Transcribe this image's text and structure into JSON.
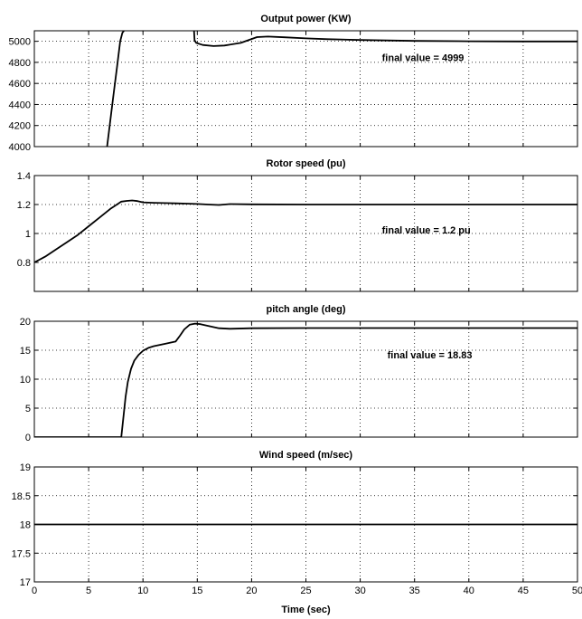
{
  "chart_data": [
    {
      "type": "line",
      "title": "Output power (KW)",
      "xlim": [
        0,
        50
      ],
      "ylim": [
        4000,
        5100
      ],
      "yticks": [
        4000,
        4200,
        4400,
        4600,
        4800,
        5000
      ],
      "xticks": [
        0,
        5,
        10,
        15,
        20,
        25,
        30,
        35,
        40,
        45,
        50
      ],
      "show_xtick_labels": false,
      "grid": true,
      "annotation": "final value =  4999",
      "annotation_at": [
        32,
        4810
      ],
      "series": [
        {
          "x": [
            6.7,
            7.0,
            7.3,
            7.6,
            7.9,
            8.1,
            8.25
          ],
          "y": [
            4000,
            4250,
            4500,
            4750,
            5000,
            5080,
            5100
          ]
        },
        {
          "x": [
            14.7,
            14.75,
            14.9,
            15.5,
            16.5,
            17.5,
            19.0,
            20.5,
            21.5,
            23,
            25,
            27,
            30,
            35,
            40,
            45,
            50
          ],
          "y": [
            5100,
            5010,
            4985,
            4965,
            4955,
            4960,
            4985,
            5040,
            5045,
            5038,
            5028,
            5020,
            5012,
            5004,
            5000,
            4999,
            4999
          ]
        }
      ]
    },
    {
      "type": "line",
      "title": "Rotor speed (pu)",
      "xlim": [
        0,
        50
      ],
      "ylim": [
        0.6,
        1.4
      ],
      "yticks": [
        0.8,
        1,
        1.2,
        1.4
      ],
      "xticks": [
        0,
        5,
        10,
        15,
        20,
        25,
        30,
        35,
        40,
        45,
        50
      ],
      "show_xtick_labels": false,
      "grid": true,
      "annotation": "final value =  1.2 pu",
      "annotation_at": [
        32,
        1.0
      ],
      "series": [
        {
          "x": [
            0,
            1,
            2,
            3,
            4,
            5,
            6,
            7,
            8,
            8.5,
            9,
            9.5,
            10,
            11,
            12,
            13,
            14,
            15,
            16,
            17,
            18,
            20,
            25,
            30,
            40,
            50
          ],
          "y": [
            0.8,
            0.84,
            0.89,
            0.94,
            0.99,
            1.05,
            1.11,
            1.17,
            1.22,
            1.225,
            1.228,
            1.224,
            1.215,
            1.212,
            1.21,
            1.208,
            1.206,
            1.204,
            1.2,
            1.197,
            1.203,
            1.201,
            1.2,
            1.2,
            1.2,
            1.2
          ]
        }
      ]
    },
    {
      "type": "line",
      "title": "pitch angle (deg)",
      "xlim": [
        0,
        50
      ],
      "ylim": [
        0,
        20
      ],
      "yticks": [
        0,
        5,
        10,
        15,
        20
      ],
      "xticks": [
        0,
        5,
        10,
        15,
        20,
        25,
        30,
        35,
        40,
        45,
        50
      ],
      "show_xtick_labels": false,
      "grid": true,
      "annotation": "final value = 18.83",
      "annotation_at": [
        32.5,
        13.6
      ],
      "series": [
        {
          "x": [
            0,
            8.0,
            8.2,
            8.4,
            8.6,
            8.9,
            9.2,
            9.6,
            10.0,
            10.5,
            11.0,
            12.0,
            13.0,
            13.4,
            13.8,
            14.3,
            14.8,
            15.3,
            16.0,
            17.0,
            18.0,
            20.0,
            25,
            30,
            40,
            50
          ],
          "y": [
            0,
            0,
            3.5,
            7.0,
            9.5,
            11.8,
            13.2,
            14.2,
            14.9,
            15.4,
            15.7,
            16.1,
            16.5,
            17.5,
            18.6,
            19.4,
            19.6,
            19.5,
            19.2,
            18.8,
            18.7,
            18.8,
            18.83,
            18.83,
            18.83,
            18.83
          ]
        }
      ]
    },
    {
      "type": "line",
      "title": "Wind speed (m/sec)",
      "xlim": [
        0,
        50
      ],
      "ylim": [
        17,
        19
      ],
      "yticks": [
        17,
        17.5,
        18,
        18.5,
        19
      ],
      "xticks": [
        0,
        5,
        10,
        15,
        20,
        25,
        30,
        35,
        40,
        45,
        50
      ],
      "show_xtick_labels": true,
      "grid": true,
      "xlabel": "Time (sec)",
      "series": [
        {
          "x": [
            0,
            50
          ],
          "y": [
            18,
            18
          ]
        }
      ]
    }
  ]
}
